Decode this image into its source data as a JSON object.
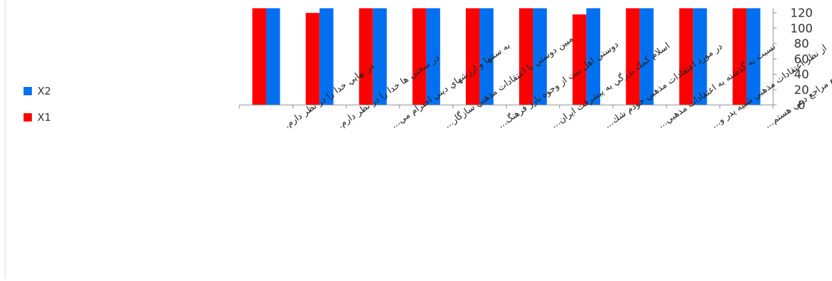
{
  "chart_data": {
    "type": "bar",
    "categories": [
      "در نهايي خدا را در نظر دارم.",
      "در سختي ها خدا را در نظر دارم.",
      "به سنتها و ارزشهاي ديني احترام مي...",
      "ميين دوستي با اعتقادات مذهبي سازگار...",
      "دوستي اهل بيت از وجوه بارز فرهنگ...",
      "اسلام كمك بزرگي به پيشرفت ايران...",
      "در مورد اعتقادات مذهبي خودم شك...",
      "نسبت به گذشته به اعتقادات مذهبي...",
      "از نظر اعتقادات مذهبي شبيه پدر و...",
      "در امور ديني تابع مراجع ديني هستم..."
    ],
    "series": [
      {
        "name": "X1",
        "color": "#ff0000",
        "values": [
          126,
          120,
          126,
          126,
          126,
          126,
          118,
          126,
          126,
          126
        ]
      },
      {
        "name": "X2",
        "color": "#0070f0",
        "values": [
          126,
          126,
          126,
          126,
          126,
          126,
          126,
          126,
          126,
          126
        ]
      }
    ],
    "yticks": [
      0,
      20,
      40,
      60,
      80,
      100,
      120
    ],
    "ylim": [
      0,
      126
    ],
    "legend_position": "left",
    "grid": false
  }
}
